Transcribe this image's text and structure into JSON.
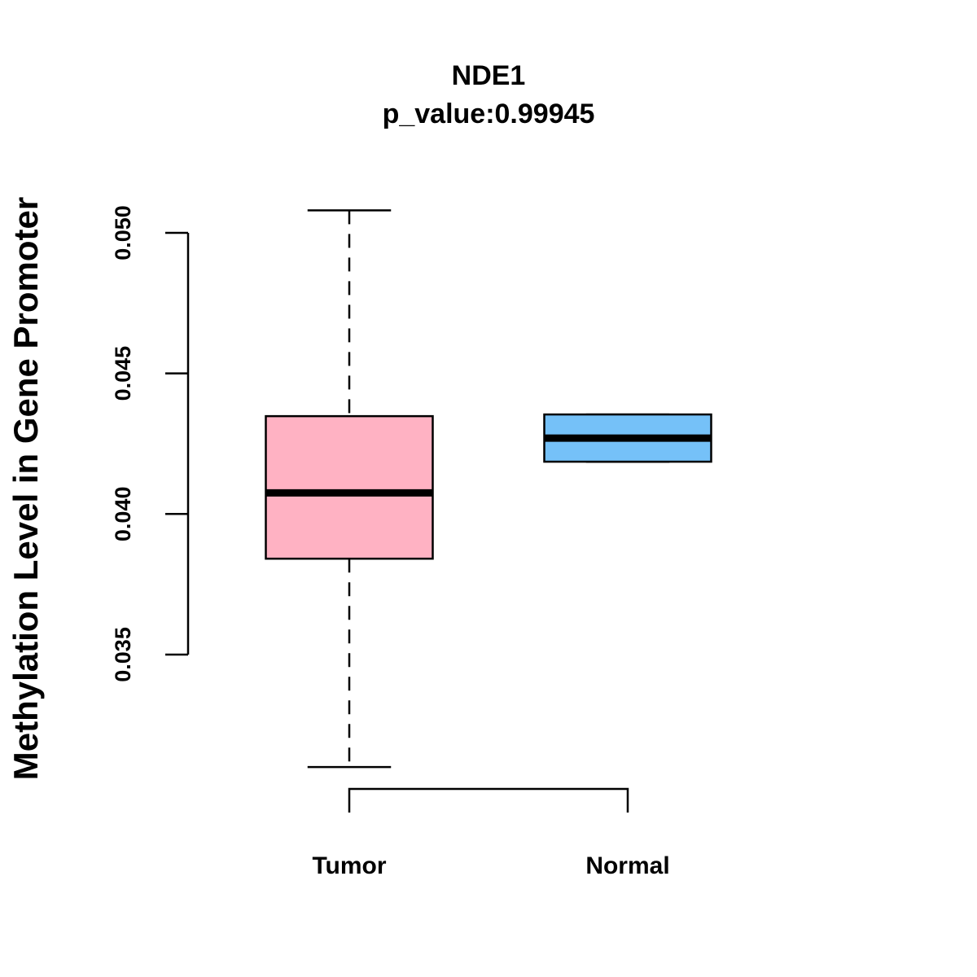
{
  "chart_data": {
    "type": "box",
    "title": "NDE1",
    "subtitle": "p_value:0.99945",
    "xlabel": "",
    "ylabel": "Methylation Level in Gene Promoter",
    "ylim": [
      0.0302,
      0.0515
    ],
    "yticks": [
      0.035,
      0.04,
      0.045,
      0.05
    ],
    "ytick_labels": [
      "0.035",
      "0.040",
      "0.045",
      "0.050"
    ],
    "categories": [
      "Tumor",
      "Normal"
    ],
    "series": [
      {
        "name": "Tumor",
        "color": "#FFB2C3",
        "whisker_low": 0.031,
        "q1": 0.03841,
        "median": 0.04075,
        "q3": 0.04348,
        "whisker_high": 0.0508
      },
      {
        "name": "Normal",
        "color": "#75C1F8",
        "whisker_low": 0.04186,
        "q1": 0.04186,
        "median": 0.0427,
        "q3": 0.04354,
        "whisker_high": 0.04354
      }
    ],
    "grid": false
  }
}
